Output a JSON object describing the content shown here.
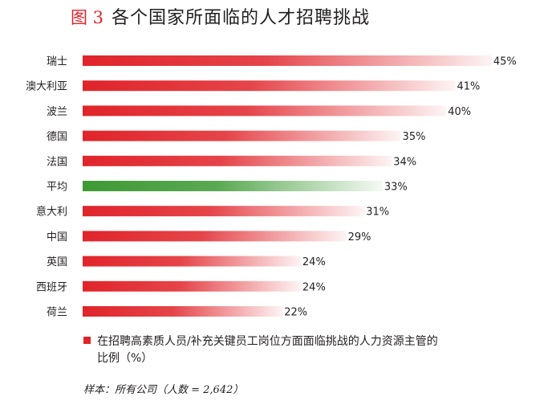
{
  "header": {
    "figure_label": "图 3",
    "title": "各个国家所面临的人才招聘挑战"
  },
  "chart_data": {
    "type": "bar",
    "orientation": "horizontal",
    "categories": [
      "瑞士",
      "澳大利亚",
      "波兰",
      "德国",
      "法国",
      "平均",
      "意大利",
      "中国",
      "英国",
      "西班牙",
      "荷兰"
    ],
    "values": [
      45,
      41,
      40,
      35,
      34,
      33,
      31,
      29,
      24,
      24,
      22
    ],
    "value_labels": [
      "45%",
      "41%",
      "40%",
      "35%",
      "34%",
      "33%",
      "31%",
      "29%",
      "24%",
      "24%",
      "22%"
    ],
    "highlight_category": "平均",
    "xlim": [
      0,
      45
    ],
    "grid": false,
    "colors": {
      "bar": "#e0242a",
      "highlight": "#3d9a34"
    }
  },
  "legend": {
    "swatch_color": "#e0242a",
    "line1": "在招聘高素质人员/补充关键员工岗位方面面临挑战的人力资源主管的",
    "line2": "比例（%）"
  },
  "footnote": {
    "sample": "样本：所有公司（人数 = 2,642）"
  }
}
